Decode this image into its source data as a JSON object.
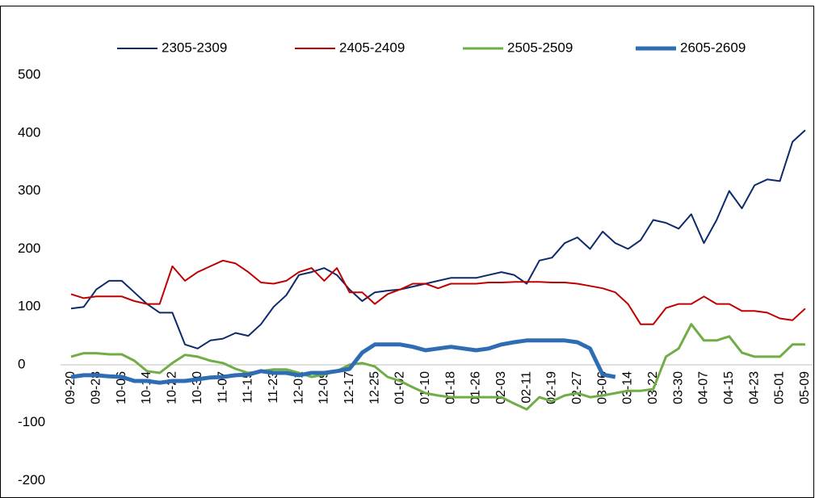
{
  "chart_data": {
    "type": "line",
    "categories": [
      "09-20",
      null,
      "09-28",
      null,
      "10-06",
      null,
      "10-14",
      null,
      "10-22",
      null,
      "10-30",
      null,
      "11-07",
      null,
      "11-15",
      null,
      "11-23",
      null,
      "12-01",
      null,
      "12-09",
      null,
      "12-17",
      null,
      "12-25",
      null,
      "01-02",
      null,
      "01-10",
      null,
      "01-18",
      null,
      "01-26",
      null,
      "02-03",
      null,
      "02-11",
      null,
      "02-19",
      null,
      "02-27",
      null,
      "03-06",
      null,
      "03-14",
      null,
      "03-22",
      null,
      "03-30",
      null,
      "04-07",
      null,
      "04-15",
      null,
      "04-23",
      null,
      "05-01",
      null,
      "05-09"
    ],
    "series": [
      {
        "name": "2305-2309",
        "color": "#0d2a6b",
        "width": 2,
        "values": [
          97,
          100,
          130,
          145,
          145,
          125,
          105,
          90,
          90,
          35,
          28,
          42,
          45,
          55,
          50,
          70,
          100,
          120,
          155,
          160,
          167,
          155,
          130,
          110,
          125,
          128,
          130,
          135,
          140,
          145,
          150,
          150,
          150,
          155,
          160,
          155,
          140,
          180,
          185,
          210,
          220,
          200,
          230,
          210,
          200,
          215,
          250,
          245,
          235,
          260,
          210,
          250,
          300,
          270,
          310,
          320,
          317,
          385,
          405
        ]
      },
      {
        "name": "2405-2409",
        "color": "#c00000",
        "width": 2,
        "values": [
          122,
          115,
          118,
          118,
          118,
          110,
          105,
          105,
          170,
          145,
          160,
          170,
          180,
          175,
          160,
          142,
          140,
          145,
          160,
          167,
          145,
          167,
          125,
          125,
          105,
          122,
          130,
          140,
          140,
          132,
          140,
          140,
          140,
          142,
          142,
          143,
          143,
          143,
          142,
          142,
          140,
          136,
          132,
          125,
          105,
          70,
          70,
          98,
          105,
          105,
          118,
          105,
          105,
          93,
          93,
          90,
          80,
          77,
          97
        ]
      },
      {
        "name": "2505-2509",
        "color": "#70ad47",
        "width": 3,
        "values": [
          14,
          20,
          20,
          18,
          18,
          7,
          -11,
          -14,
          3,
          17,
          14,
          7,
          3,
          -7,
          -14,
          -11,
          -8,
          -8,
          -14,
          -21,
          -17,
          -11,
          0,
          3,
          -3,
          -21,
          -28,
          -39,
          -49,
          -53,
          -56,
          -56,
          -56,
          -56,
          -56,
          -67,
          -77,
          -56,
          -63,
          -53,
          -49,
          -56,
          -53,
          -49,
          -45,
          -45,
          -42,
          14,
          28,
          70,
          42,
          42,
          49,
          21,
          14,
          14,
          14,
          35,
          35
        ]
      },
      {
        "name": "2605-2609",
        "color": "#2e6db4",
        "width": 5,
        "values": [
          -21,
          -18,
          -18,
          -20,
          -21,
          -28,
          -28,
          -31,
          -28,
          -28,
          -25,
          -22,
          -21,
          -18,
          -17,
          -11,
          -14,
          -14,
          -18,
          -14,
          -14,
          -11,
          -7,
          21,
          35,
          35,
          35,
          31,
          25,
          28,
          31,
          28,
          25,
          28,
          35,
          39,
          42,
          42,
          42,
          42,
          39,
          28,
          -17,
          -21,
          null,
          null,
          null,
          null,
          null,
          null,
          null,
          null,
          null,
          null,
          null,
          null,
          null,
          null,
          null
        ]
      }
    ],
    "ylim": [
      -230,
      620
    ],
    "yticks": [
      -200,
      -100,
      0,
      100,
      200,
      300,
      400,
      500
    ]
  }
}
